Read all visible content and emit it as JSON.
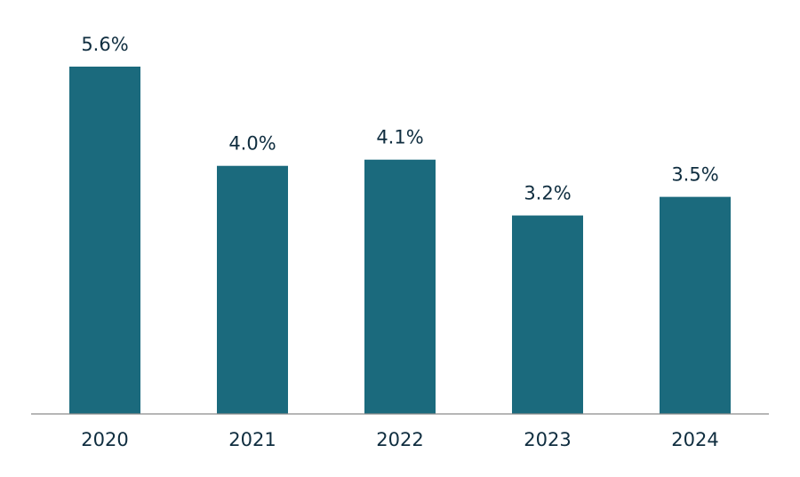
{
  "chart_data": {
    "type": "bar",
    "title": "",
    "xlabel": "",
    "ylabel": "",
    "categories": [
      "2020",
      "2021",
      "2022",
      "2023",
      "2024"
    ],
    "values": [
      5.6,
      4.0,
      4.1,
      3.2,
      3.5
    ],
    "value_labels": [
      "5.6%",
      "4.0%",
      "4.1%",
      "3.2%",
      "3.5%"
    ],
    "ylim": [
      0,
      5.6
    ],
    "grid": false,
    "legend": "none",
    "colors": {
      "bar": "#1b6a7d",
      "axis": "#8a8a8a",
      "text": "#0f2d3f"
    }
  }
}
